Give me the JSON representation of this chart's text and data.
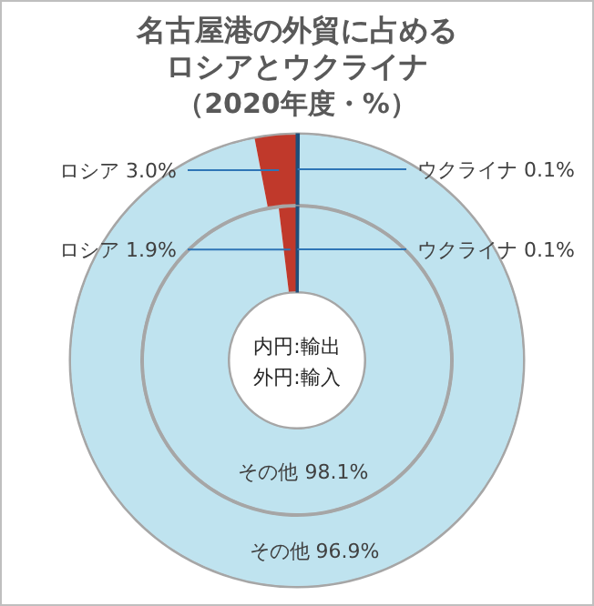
{
  "chart_data": [
    {
      "type": "donut",
      "title": "名古屋港の外貿に占めるロシアとウクライナ",
      "subtitle": "（2020年度・%）",
      "categories": [
        "ウクライナ",
        "その他",
        "ロシア"
      ],
      "values": [
        0.1,
        96.9,
        3.0
      ],
      "value_labels": [
        "0.1%",
        "96.9%",
        "3.0%"
      ],
      "colors": [
        "#1f4e79",
        "#bfe3ef",
        "#c0392b"
      ]
    },
    {
      "type": "donut",
      "categories": [
        "ウクライナ",
        "その他",
        "ロシア"
      ],
      "values": [
        0.1,
        98.1,
        1.9
      ],
      "value_labels": [
        "0.1%",
        "98.1%",
        "1.9%"
      ],
      "colors": [
        "#1f4e79",
        "#bfe3ef",
        "#c0392b"
      ],
      "annotations": [
        "内円:輸出",
        "外円:輸入"
      ]
    }
  ]
}
